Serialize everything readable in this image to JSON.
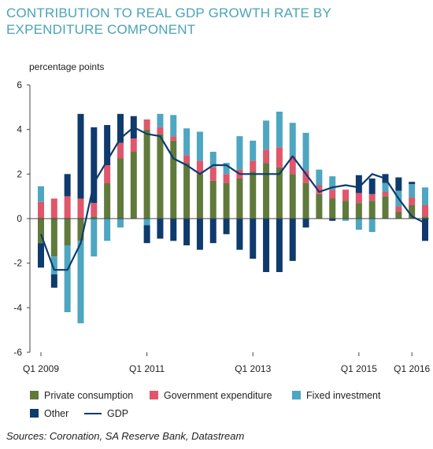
{
  "title": "CONTRIBUTION TO REAL GDP GROWTH RATE BY EXPENDITURE COMPONENT",
  "source": "Sources: Coronation, SA Reserve Bank, Datastream",
  "colors": {
    "private": "#5f7a3a",
    "government": "#e0566b",
    "fixed": "#4ea6c1",
    "other": "#0f3a6e",
    "gdp": "#0f3a6e",
    "axis": "#444444",
    "title": "#4aa3b8"
  },
  "chart_data": {
    "type": "bar",
    "stacked": true,
    "ylabel": "percentage points",
    "ylim": [
      -6,
      6
    ],
    "yticks": [
      "-6",
      "-4",
      "-2",
      "0",
      "2",
      "4",
      "6"
    ],
    "grid": false,
    "legend_position": "bottom",
    "categories": [
      "Q1 2009",
      "Q2 2009",
      "Q3 2009",
      "Q4 2009",
      "Q1 2010",
      "Q2 2010",
      "Q3 2010",
      "Q4 2010",
      "Q1 2011",
      "Q2 2011",
      "Q3 2011",
      "Q4 2011",
      "Q1 2012",
      "Q2 2012",
      "Q3 2012",
      "Q4 2012",
      "Q1 2013",
      "Q2 2013",
      "Q3 2013",
      "Q4 2013",
      "Q1 2014",
      "Q2 2014",
      "Q3 2014",
      "Q4 2014",
      "Q1 2015",
      "Q2 2015",
      "Q3 2015",
      "Q4 2015",
      "Q1 2016",
      "Q2 2016"
    ],
    "xtick_labels": [
      {
        "index": 0,
        "label": "Q1 2009"
      },
      {
        "index": 8,
        "label": "Q1 2011"
      },
      {
        "index": 16,
        "label": "Q1  2013"
      },
      {
        "index": 24,
        "label": "Q1 2015"
      },
      {
        "index": 28,
        "label": "Q1 2016"
      }
    ],
    "series": [
      {
        "name": "Private consumption",
        "key": "private",
        "values": [
          -1.1,
          -1.7,
          -1.2,
          -1.0,
          0.1,
          1.6,
          2.7,
          3.0,
          4.0,
          3.8,
          3.5,
          2.5,
          2.0,
          1.7,
          1.6,
          1.8,
          2.1,
          2.5,
          2.3,
          2.0,
          1.6,
          1.1,
          0.9,
          0.8,
          0.7,
          0.8,
          1.0,
          0.3,
          0.6,
          0.1
        ]
      },
      {
        "name": "Government expenditure",
        "key": "government",
        "values": [
          0.75,
          0.9,
          1.0,
          0.9,
          0.6,
          0.8,
          0.7,
          0.6,
          0.45,
          0.3,
          0.2,
          0.35,
          0.6,
          0.6,
          0.4,
          0.4,
          0.5,
          0.6,
          0.9,
          0.8,
          0.55,
          0.4,
          0.4,
          0.5,
          0.45,
          0.3,
          0.2,
          0.25,
          0.35,
          0.5
        ]
      },
      {
        "name": "Fixed investment",
        "key": "fixed",
        "values": [
          0.7,
          -0.8,
          -3.0,
          -3.7,
          -1.7,
          -1.0,
          -0.4,
          0.0,
          -0.3,
          0.6,
          0.95,
          1.2,
          1.3,
          0.7,
          0.5,
          1.5,
          0.9,
          1.3,
          1.6,
          1.5,
          1.7,
          0.7,
          0.6,
          -0.1,
          -0.5,
          -0.6,
          0.4,
          0.7,
          0.6,
          0.8
        ]
      },
      {
        "name": "Other",
        "key": "other",
        "values": [
          -1.1,
          -0.6,
          1.0,
          3.8,
          3.4,
          1.8,
          1.3,
          1.0,
          -0.8,
          -0.9,
          -1.0,
          -1.2,
          -1.4,
          -1.1,
          -0.7,
          -1.4,
          -1.8,
          -2.4,
          -2.4,
          -1.9,
          -0.4,
          0.0,
          -0.1,
          0.0,
          0.8,
          0.7,
          0.4,
          0.6,
          0.1,
          -1.0
        ]
      },
      {
        "name": "GDP",
        "key": "gdp",
        "type": "line",
        "values": [
          -0.7,
          -2.3,
          -2.3,
          -1.1,
          1.6,
          2.6,
          3.6,
          4.1,
          3.8,
          3.7,
          2.7,
          2.4,
          2.0,
          2.4,
          2.4,
          2.0,
          2.0,
          2.0,
          2.0,
          2.8,
          2.0,
          1.2,
          1.4,
          1.5,
          1.4,
          2.0,
          1.8,
          0.9,
          0.1,
          -0.2
        ]
      }
    ]
  },
  "legend": {
    "private": "Private consumption",
    "government": "Government expenditure",
    "fixed": "Fixed investment",
    "other": "Other",
    "gdp": "GDP"
  }
}
